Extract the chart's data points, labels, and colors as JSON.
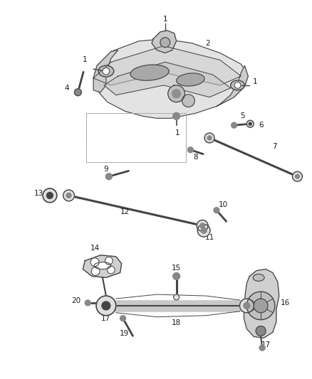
{
  "background_color": "#ffffff",
  "fig_width": 4.38,
  "fig_height": 5.33,
  "dpi": 100,
  "label_fontsize": 7.5,
  "label_color": "#1a1a1a",
  "line_color": "#444444",
  "part_fill": "#e0e0e0",
  "part_fill2": "#c8c8c8",
  "part_stroke": "#444444"
}
